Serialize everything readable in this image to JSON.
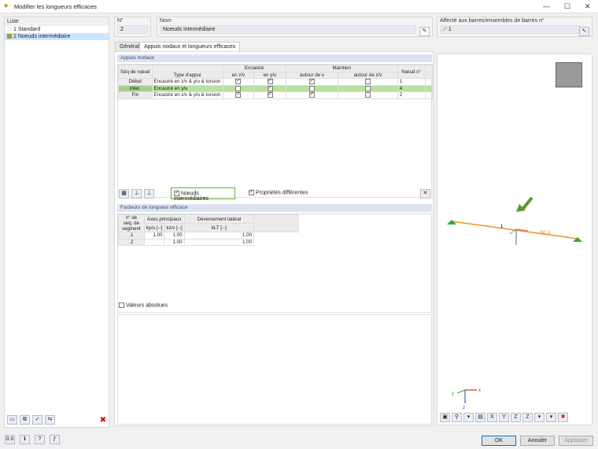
{
  "window": {
    "title": "Modifier les longueurs efficaces",
    "minimize": "—",
    "maximize": "☐",
    "close": "✕"
  },
  "list": {
    "header": "Liste",
    "items": [
      {
        "num": "1",
        "label": "Standard",
        "color": "#e8f4ff"
      },
      {
        "num": "2",
        "label": "Noeuds intermédiaire",
        "color": "#a0a020"
      }
    ]
  },
  "number": {
    "label": "N°",
    "value": "2"
  },
  "name": {
    "label": "Nom",
    "value": "Noeuds intermédiaire"
  },
  "assigned": {
    "label": "Affecté aux barres/ensembles de barres n°",
    "value": "1"
  },
  "tabs": [
    "Général",
    "Appuis nodaux et longueurs efficaces"
  ],
  "nodal": {
    "title": "Appuis nodaux",
    "headers": {
      "seq": "Séq de nœud",
      "type": "Type d'appui",
      "encastre": "Encastré",
      "enzv": "en z/v",
      "enyu": "en y/u",
      "maintien": "Maintien",
      "autourx": "autour de x",
      "autourzv": "autour de z/v",
      "noeud": "Nœud n°"
    },
    "rows": [
      {
        "seq": "Début",
        "type": "Encastré en z/v & y/u & torsion",
        "zv": true,
        "yu": true,
        "x": true,
        "mzv": false,
        "node": "1"
      },
      {
        "seq": "Inter.",
        "type": "Encastré en y/u",
        "zv": false,
        "yu": true,
        "x": false,
        "mzv": false,
        "node": "4"
      },
      {
        "seq": "Fin",
        "type": "Encastré en z/v & y/u & torsion",
        "zv": true,
        "yu": true,
        "x": true,
        "mzv": false,
        "node": "2"
      }
    ]
  },
  "options": {
    "intermediate": "Nœuds intermédiaires",
    "intermediate_checked": true,
    "different": "Propriétés différentes",
    "different_checked": true
  },
  "factors": {
    "title": "Facteurs de longueur efficace",
    "headers": {
      "seq": "n° de seq. de segment",
      "axes": "Axes principaux",
      "kyu": "ky/u [--]",
      "kzv": "kz/v [--]",
      "dev": "Déversement latéral",
      "klt": "kLT [--]"
    },
    "rows": [
      {
        "seq": ".1",
        "kyu": "1.00",
        "kzv": "1.00",
        "klt": "1.00"
      },
      {
        "seq": ".2",
        "kyu": "",
        "kzv": "1.00",
        "klt": "1.00"
      }
    ]
  },
  "absolute": {
    "label": "Valeurs absolues",
    "checked": false
  },
  "view": {
    "member": "1",
    "sc": "SC 1",
    "axes": {
      "x": "x",
      "y": "y",
      "z": "z"
    }
  },
  "buttons": {
    "ok": "OK",
    "cancel": "Annuler",
    "apply": "Appliquer"
  }
}
